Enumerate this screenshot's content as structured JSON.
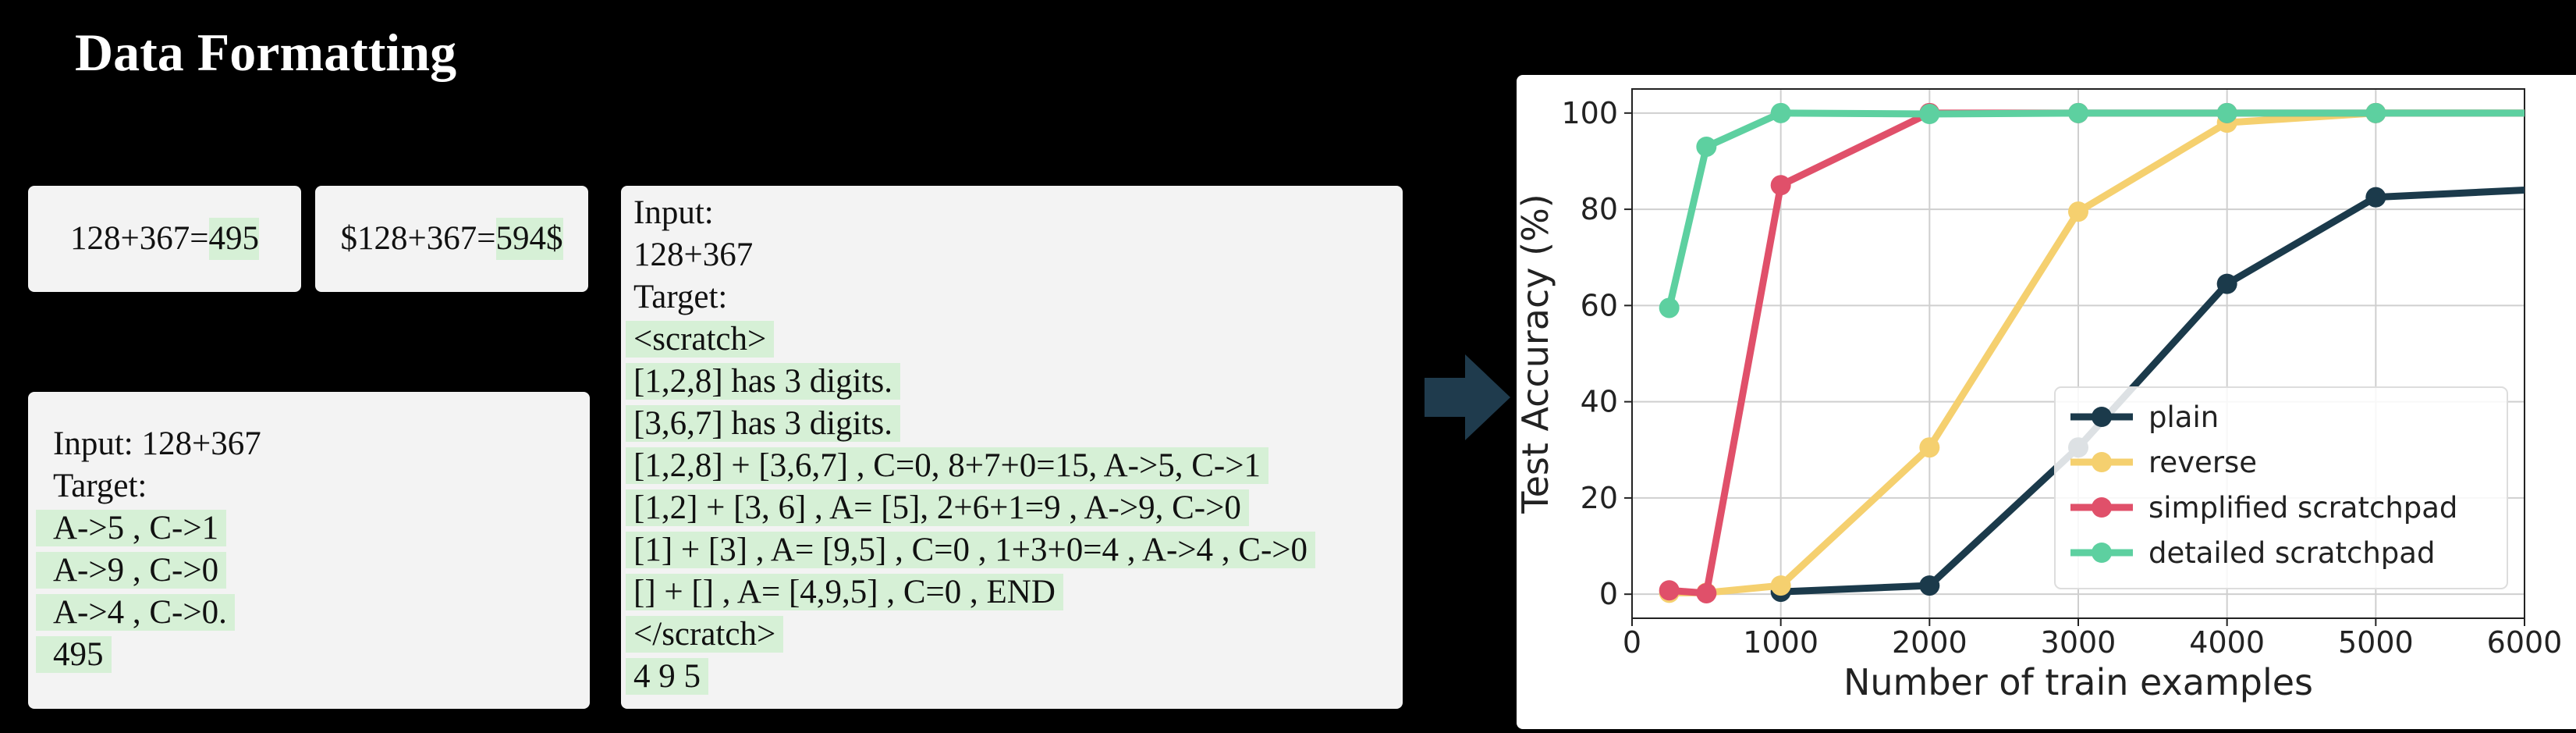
{
  "page": {
    "title": "Data Formatting"
  },
  "examples": {
    "plain": {
      "prefix": "128+367=",
      "answer": "495"
    },
    "reverse": {
      "prefix": "$128+367=",
      "answer": "594$"
    },
    "simplified": {
      "plain_lines": [
        "Input: 128+367",
        "Target:"
      ],
      "highlighted_lines": [
        "A->5 , C->1",
        "A->9 , C->0",
        "A->4 , C->0.",
        "495"
      ]
    },
    "detailed": {
      "plain_lines": [
        "Input:",
        "128+367",
        "Target:"
      ],
      "highlighted_lines": [
        "<scratch>",
        "[1,2,8] has 3 digits.",
        "[3,6,7] has 3 digits.",
        "[1,2,8] + [3,6,7] , C=0, 8+7+0=15, A->5, C->1",
        "[1,2] + [3, 6] , A= [5], 2+6+1=9 , A->9, C->0",
        "[1] + [3] , A= [9,5] , C=0 , 1+3+0=4 , A->4 , C->0",
        "[] + [] , A= [4,9,5] , C=0 , END",
        "</scratch>",
        "4 9 5"
      ]
    }
  },
  "colors": {
    "highlight": "#d6f0d6",
    "arrow": "#1f3b4d",
    "plain": "#1b3a4b",
    "reverse": "#f5d06f",
    "simplified": "#e0506a",
    "detailed": "#5dd0a0"
  },
  "chart_data": {
    "type": "line",
    "xlabel": "Number of train examples",
    "ylabel": "Test Accuracy (%)",
    "xlim": [
      0,
      6000
    ],
    "ylim": [
      -5,
      105
    ],
    "xticks": [
      0,
      1000,
      2000,
      3000,
      4000,
      5000,
      6000
    ],
    "yticks": [
      0,
      20,
      40,
      60,
      80,
      100
    ],
    "grid": true,
    "legend_position": "lower-right",
    "series": [
      {
        "name": "plain",
        "color": "#1b3a4b",
        "x": [
          1000,
          2000,
          3000,
          4000,
          5000,
          6000
        ],
        "y": [
          0.5,
          1.8,
          30.5,
          64.5,
          82.5,
          84
        ]
      },
      {
        "name": "reverse",
        "color": "#f5d06f",
        "x": [
          250,
          500,
          1000,
          2000,
          3000,
          4000,
          5000,
          6000
        ],
        "y": [
          0.3,
          0.3,
          1.8,
          30.5,
          79.5,
          98,
          100,
          100
        ]
      },
      {
        "name": "simplified scratchpad",
        "color": "#e0506a",
        "x": [
          250,
          500,
          1000,
          2000,
          3000,
          4000,
          5000,
          6000
        ],
        "y": [
          0.8,
          0.2,
          85,
          100,
          100,
          100,
          100,
          100
        ]
      },
      {
        "name": "detailed scratchpad",
        "color": "#5dd0a0",
        "x": [
          250,
          500,
          1000,
          2000,
          3000,
          4000,
          5000,
          6000
        ],
        "y": [
          59.5,
          93,
          100,
          99.8,
          100,
          100,
          100,
          100
        ]
      }
    ]
  }
}
